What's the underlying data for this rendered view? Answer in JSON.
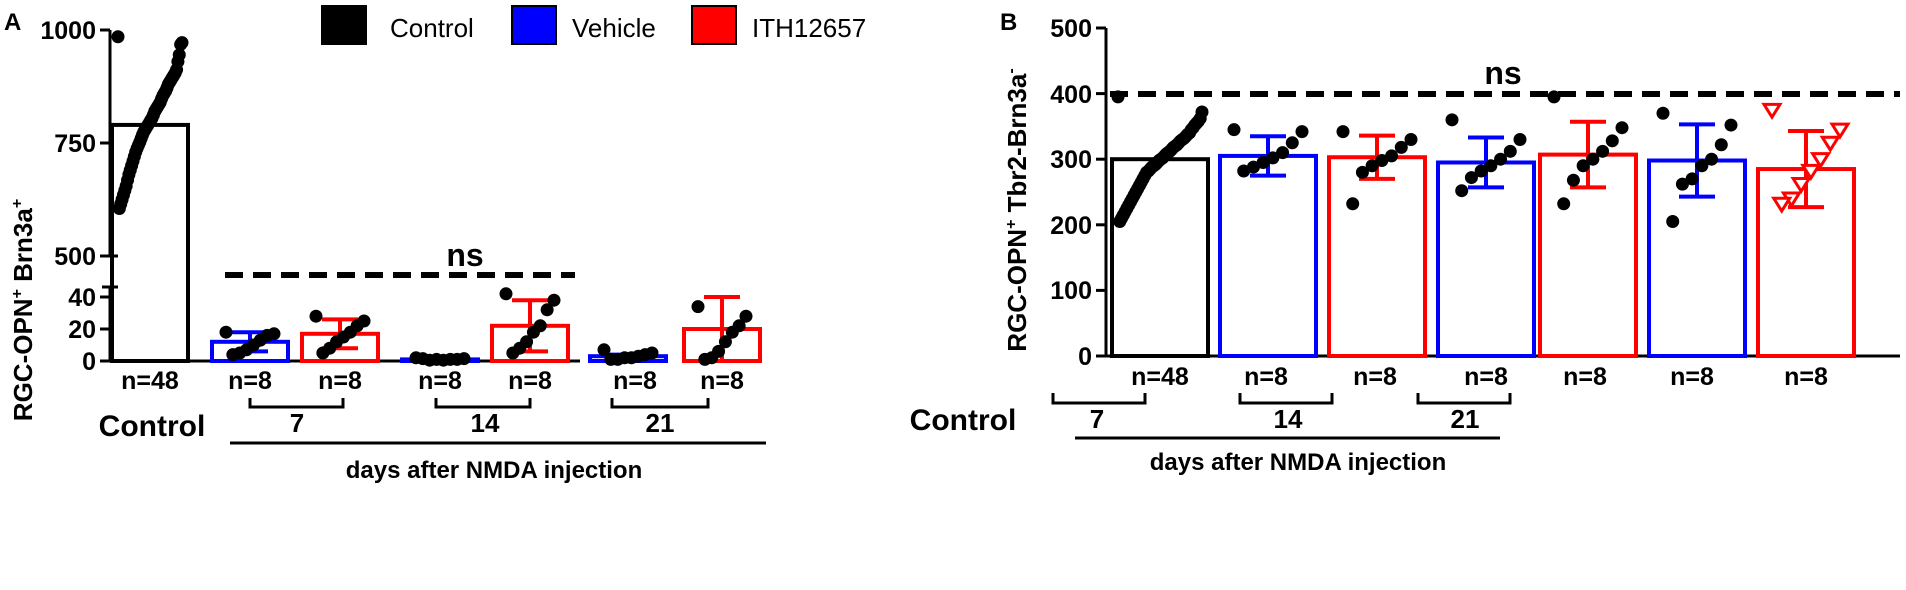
{
  "figure": {
    "panel_a_label": "A",
    "panel_b_label": "B",
    "legend": [
      {
        "label": "Control",
        "color": "#000000"
      },
      {
        "label": "Vehicle",
        "color": "#0000ff"
      },
      {
        "label": "ITH12657",
        "color": "#ff0000"
      }
    ],
    "x_group_title": "days after NMDA injection"
  },
  "chart_data": [
    {
      "type": "bar",
      "panel": "A",
      "ylabel": {
        "main": "RGC-OPN",
        "sup1": "+",
        "mid": " Brn3a",
        "sup2": "+"
      },
      "broken_axis": true,
      "ylim_lower": [
        0,
        45
      ],
      "ylim_upper": [
        500,
        1000
      ],
      "yticks_lower": [
        "0",
        "20",
        "40"
      ],
      "yticks_upper": [
        "500",
        "750",
        "1000"
      ],
      "significance": "ns",
      "significance_line_value": 50,
      "category_title": "Control",
      "day_labels": [
        "7",
        "14",
        "21"
      ],
      "bars": [
        {
          "group": "Control",
          "n": "n=48",
          "value": 790,
          "error": 0,
          "color": "#000000",
          "points": [
            985,
            972,
            968,
            945,
            930,
            912,
            905,
            900,
            895,
            890,
            885,
            880,
            872,
            865,
            860,
            855,
            848,
            840,
            835,
            830,
            825,
            820,
            812,
            805,
            800,
            795,
            790,
            785,
            780,
            775,
            768,
            760,
            752,
            745,
            738,
            730,
            720,
            710,
            700,
            690,
            680,
            668,
            655,
            645,
            635,
            625,
            615,
            605
          ]
        },
        {
          "group": "Vehicle day 7",
          "n": "n=8",
          "value": 12,
          "error": 6,
          "color": "#0000ff",
          "points": [
            18,
            17,
            16,
            13,
            10,
            7,
            5,
            4
          ]
        },
        {
          "group": "ITH12657 day 7",
          "n": "n=8",
          "value": 17,
          "error": 9,
          "color": "#ff0000",
          "points": [
            28,
            25,
            22,
            18,
            15,
            12,
            8,
            5
          ]
        },
        {
          "group": "Vehicle day 14",
          "n": "n=8",
          "value": 1,
          "error": 0.5,
          "color": "#0000ff",
          "points": [
            2,
            1.5,
            1,
            1,
            0.5,
            1,
            0.5,
            1.5
          ]
        },
        {
          "group": "ITH12657 day 14",
          "n": "n=8",
          "value": 22,
          "error": 16,
          "color": "#ff0000",
          "points": [
            42,
            38,
            32,
            22,
            18,
            12,
            8,
            5
          ]
        },
        {
          "group": "Vehicle day 21",
          "n": "n=8",
          "value": 3,
          "error": 1,
          "color": "#0000ff",
          "points": [
            7,
            5,
            4,
            3,
            2,
            2,
            1,
            1
          ]
        },
        {
          "group": "ITH12657 day 21",
          "n": "n=8",
          "value": 20,
          "error": 20,
          "color": "#ff0000",
          "points": [
            34,
            28,
            22,
            18,
            12,
            6,
            2,
            1
          ]
        }
      ]
    },
    {
      "type": "bar",
      "panel": "B",
      "ylabel": {
        "main": "RGC-OPN",
        "sup1": "+",
        "mid": " Tbr2-Brn3a",
        "sup2": "-"
      },
      "ylim": [
        0,
        500
      ],
      "yticks": [
        "0",
        "100",
        "200",
        "300",
        "400",
        "500"
      ],
      "significance": "ns",
      "significance_line_value": 400,
      "category_title": "Control",
      "day_labels": [
        "7",
        "14",
        "21"
      ],
      "bars": [
        {
          "group": "Control",
          "n": "n=48",
          "value": 300,
          "error": 0,
          "color": "#000000",
          "points": [
            395,
            372,
            362,
            358,
            355,
            352,
            348,
            345,
            340,
            338,
            335,
            332,
            330,
            328,
            325,
            322,
            320,
            318,
            315,
            312,
            310,
            308,
            305,
            302,
            300,
            298,
            295,
            292,
            290,
            288,
            285,
            282,
            280,
            275,
            270,
            265,
            260,
            255,
            250,
            245,
            240,
            235,
            230,
            225,
            220,
            215,
            210,
            205
          ]
        },
        {
          "group": "Vehicle day 7",
          "n": "n=8",
          "value": 305,
          "error": 30,
          "color": "#0000ff",
          "points": [
            345,
            342,
            325,
            310,
            302,
            295,
            288,
            282
          ]
        },
        {
          "group": "ITH12657 day 7",
          "n": "n=8",
          "value": 303,
          "error": 33,
          "color": "#ff0000",
          "points": [
            342,
            330,
            318,
            305,
            298,
            290,
            280,
            232
          ]
        },
        {
          "group": "Vehicle day 14",
          "n": "n=8",
          "value": 295,
          "error": 38,
          "color": "#0000ff",
          "points": [
            360,
            330,
            312,
            300,
            290,
            282,
            272,
            252
          ]
        },
        {
          "group": "ITH12657 day 14",
          "n": "n=8",
          "value": 307,
          "error": 50,
          "color": "#ff0000",
          "points": [
            395,
            348,
            328,
            312,
            300,
            290,
            268,
            232
          ]
        },
        {
          "group": "Vehicle day 21",
          "n": "n=8",
          "value": 298,
          "error": 55,
          "color": "#0000ff",
          "points": [
            370,
            352,
            322,
            300,
            290,
            270,
            262,
            205
          ]
        },
        {
          "group": "ITH12657 day 21",
          "n": "n=8",
          "value": 285,
          "error": 58,
          "color": "#ff0000",
          "marker": "triangle-down",
          "points": [
            375,
            345,
            325,
            300,
            282,
            262,
            240,
            232
          ]
        }
      ]
    }
  ]
}
